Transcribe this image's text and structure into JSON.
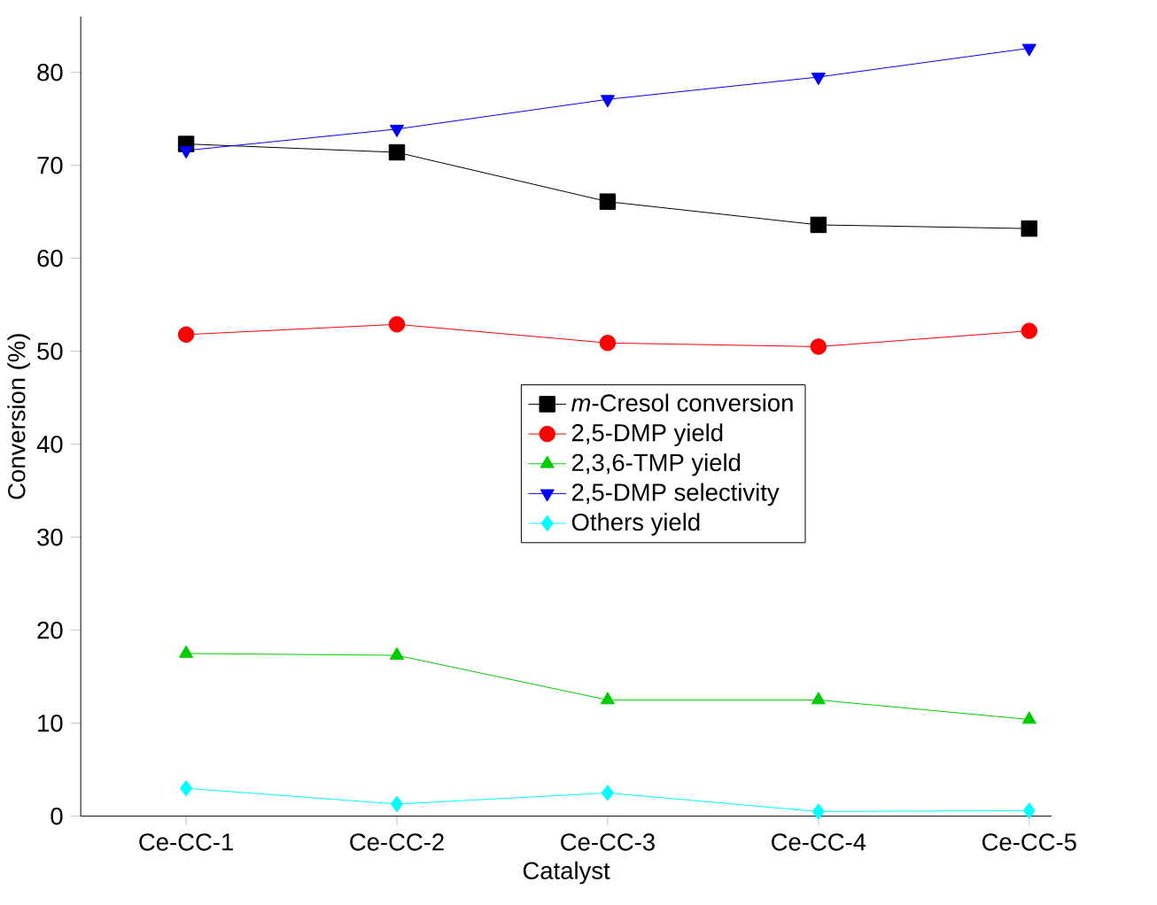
{
  "chart_data": {
    "type": "line",
    "xlabel": "Catalyst",
    "ylabel": "Conversion (%)",
    "categories": [
      "Ce-CC-1",
      "Ce-CC-2",
      "Ce-CC-3",
      "Ce-CC-4",
      "Ce-CC-5"
    ],
    "ylim": [
      0,
      86
    ],
    "yticks": [
      0,
      10,
      20,
      30,
      40,
      50,
      60,
      70,
      80
    ],
    "grid": false,
    "legend": "center",
    "line_style": "solid",
    "series": [
      {
        "name": "*m*-Cresol conversion",
        "color": "#000000",
        "marker": "square",
        "values": [
          72.3,
          71.4,
          66.1,
          63.6,
          63.2
        ]
      },
      {
        "name": "2,5-DMP yield",
        "color": "#ff0000",
        "marker": "circle",
        "values": [
          51.8,
          52.9,
          50.9,
          50.5,
          52.2
        ]
      },
      {
        "name": "2,3,6-TMP yield",
        "color": "#00cc00",
        "marker": "triangle",
        "values": [
          17.5,
          17.3,
          12.5,
          12.5,
          10.4
        ]
      },
      {
        "name": "2,5-DMP selectivity",
        "color": "#0000ff",
        "marker": "triangle-down",
        "values": [
          71.6,
          73.9,
          77.1,
          79.5,
          82.6
        ]
      },
      {
        "name": "Others yield",
        "color": "#00ffff",
        "marker": "diamond",
        "values": [
          3.0,
          1.3,
          2.5,
          0.5,
          0.6
        ]
      }
    ]
  }
}
